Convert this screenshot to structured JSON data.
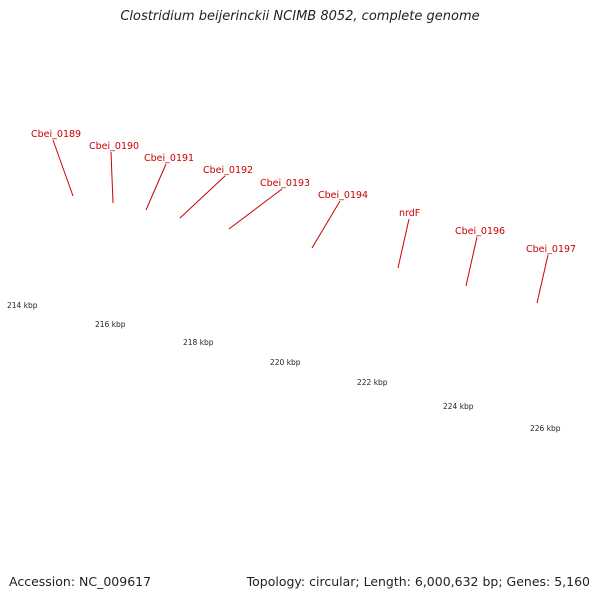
{
  "header": {
    "title": "Clostridium beijerinckii NCIMB 8052, complete genome"
  },
  "footer": {
    "accession": "Accession: NC_009617",
    "summary": "Topology: circular; Length: 6,000,632 bp; Genes: 5,160"
  },
  "colors": {
    "label": "#cc0000",
    "backbone": "#888888",
    "ticks": "#1f7a1f",
    "cds_red": "#ee1111",
    "cyan": "#22eeee",
    "sky": "#1aaaee",
    "teal": "#22cccc",
    "green": "#33cc33",
    "orange": "#ff9900",
    "olive": "#6e8a1f"
  },
  "genes": [
    {
      "name": "Cbei_0189"
    },
    {
      "name": "Cbei_0190"
    },
    {
      "name": "Cbei_0191"
    },
    {
      "name": "Cbei_0192"
    },
    {
      "name": "Cbei_0193"
    },
    {
      "name": "Cbei_0194"
    },
    {
      "name": "nrdF"
    },
    {
      "name": "Cbei_0196"
    },
    {
      "name": "Cbei_0197"
    }
  ],
  "scale": [
    {
      "label": "214 kbp"
    },
    {
      "label": "216 kbp"
    },
    {
      "label": "218 kbp"
    },
    {
      "label": "220 kbp"
    },
    {
      "label": "222 kbp"
    },
    {
      "label": "224 kbp"
    },
    {
      "label": "226 kbp"
    }
  ]
}
